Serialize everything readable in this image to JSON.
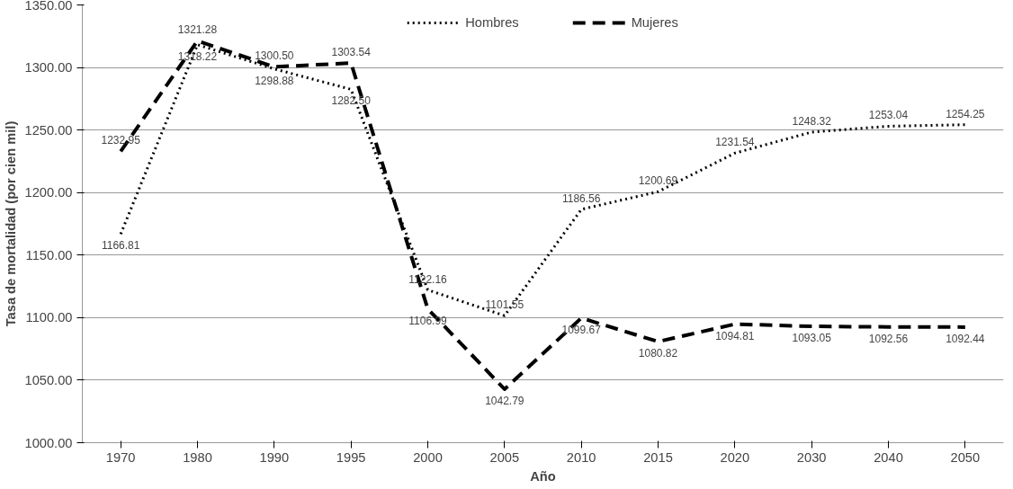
{
  "chart_data": {
    "type": "line",
    "xlabel": "Año",
    "ylabel": "Tasa de mortalidad (por cien mil)",
    "categories": [
      "1970",
      "1980",
      "1990",
      "1995",
      "2000",
      "2005",
      "2010",
      "2015",
      "2020",
      "2030",
      "2040",
      "2050"
    ],
    "series": [
      {
        "name": "Hombres",
        "color": "#000000",
        "line_style": "dotted",
        "values": [
          1166.81,
          1318.22,
          1298.88,
          1282.5,
          1122.16,
          1101.55,
          1186.56,
          1200.69,
          1231.54,
          1248.32,
          1253.04,
          1254.25
        ],
        "value_labels": [
          "1166.81",
          "1318.22",
          "1298.88",
          "1282.50",
          "1122.16",
          "1101.55",
          "1186.56",
          "1200.69",
          "1231.54",
          "1248.32",
          "1253.04",
          "1254.25"
        ]
      },
      {
        "name": "Mujeres",
        "color": "#000000",
        "line_style": "dashed",
        "values": [
          1232.95,
          1321.28,
          1300.5,
          1303.54,
          1106.99,
          1042.79,
          1099.67,
          1080.82,
          1094.81,
          1093.05,
          1092.56,
          1092.44
        ],
        "value_labels": [
          "1232.95",
          "1321.28",
          "1300.50",
          "1303.54",
          "1106.99",
          "1042.79",
          "1099.67",
          "1080.82",
          "1094.81",
          "1093.05",
          "1092.56",
          "1092.44"
        ]
      }
    ],
    "ylim": [
      1000,
      1350
    ],
    "yticks": [
      {
        "value": 1000,
        "label": "1000.00"
      },
      {
        "value": 1050,
        "label": "1050.00"
      },
      {
        "value": 1100,
        "label": "1100.00"
      },
      {
        "value": 1150,
        "label": "1150.00"
      },
      {
        "value": 1200,
        "label": "1200.00"
      },
      {
        "value": 1250,
        "label": "1250.00"
      },
      {
        "value": 1300,
        "label": "1300.00"
      },
      {
        "value": 1350,
        "label": "1350.00"
      }
    ],
    "grid": "y",
    "legend": "top",
    "marker": "none"
  }
}
